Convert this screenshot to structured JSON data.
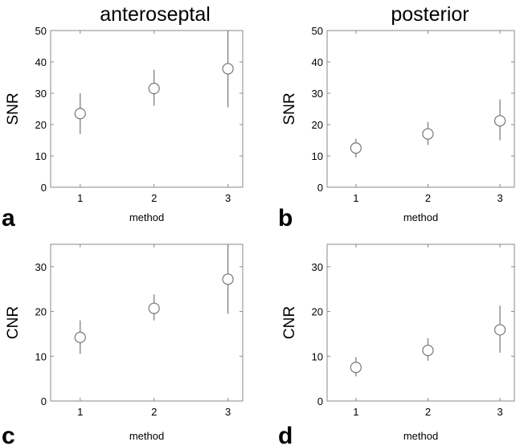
{
  "column_titles": [
    "anteroseptal",
    "posterior"
  ],
  "chart_data": [
    {
      "type": "scatter",
      "panel_label": "a",
      "title": "anteroseptal",
      "xlabel": "method",
      "ylabel": "SNR",
      "xlim": [
        0.6,
        3.2
      ],
      "ylim": [
        0,
        50
      ],
      "x_ticks": [
        "1",
        "2",
        "3"
      ],
      "y_ticks": [
        "0",
        "10",
        "20",
        "30",
        "40",
        "50"
      ],
      "series": [
        {
          "x": [
            1,
            2,
            3
          ],
          "y": [
            23.5,
            31.5,
            37.8
          ],
          "err_low": [
            17,
            26,
            25.5
          ],
          "err_high": [
            30,
            37.5,
            50
          ]
        }
      ]
    },
    {
      "type": "scatter",
      "panel_label": "b",
      "title": "posterior",
      "xlabel": "method",
      "ylabel": "SNR",
      "xlim": [
        0.6,
        3.2
      ],
      "ylim": [
        0,
        50
      ],
      "x_ticks": [
        "1",
        "2",
        "3"
      ],
      "y_ticks": [
        "0",
        "10",
        "20",
        "30",
        "40",
        "50"
      ],
      "series": [
        {
          "x": [
            1,
            2,
            3
          ],
          "y": [
            12.5,
            17,
            21.2
          ],
          "err_low": [
            9.5,
            13.5,
            15
          ],
          "err_high": [
            15.5,
            20.8,
            28
          ]
        }
      ]
    },
    {
      "type": "scatter",
      "panel_label": "c",
      "title": "",
      "xlabel": "method",
      "ylabel": "CNR",
      "xlim": [
        0.6,
        3.2
      ],
      "ylim": [
        0,
        35
      ],
      "x_ticks": [
        "1",
        "2",
        "3"
      ],
      "y_ticks": [
        "0",
        "10",
        "20",
        "30"
      ],
      "series": [
        {
          "x": [
            1,
            2,
            3
          ],
          "y": [
            14.2,
            20.7,
            27.2
          ],
          "err_low": [
            10.5,
            18,
            19.5
          ],
          "err_high": [
            18,
            23.8,
            35
          ]
        }
      ]
    },
    {
      "type": "scatter",
      "panel_label": "d",
      "title": "",
      "xlabel": "method",
      "ylabel": "CNR",
      "xlim": [
        0.6,
        3.2
      ],
      "ylim": [
        0,
        35
      ],
      "x_ticks": [
        "1",
        "2",
        "3"
      ],
      "y_ticks": [
        "0",
        "10",
        "20",
        "30"
      ],
      "series": [
        {
          "x": [
            1,
            2,
            3
          ],
          "y": [
            7.5,
            11.3,
            15.9
          ],
          "err_low": [
            5.5,
            9,
            10.8
          ],
          "err_high": [
            9.8,
            14,
            21.3
          ]
        }
      ]
    }
  ]
}
